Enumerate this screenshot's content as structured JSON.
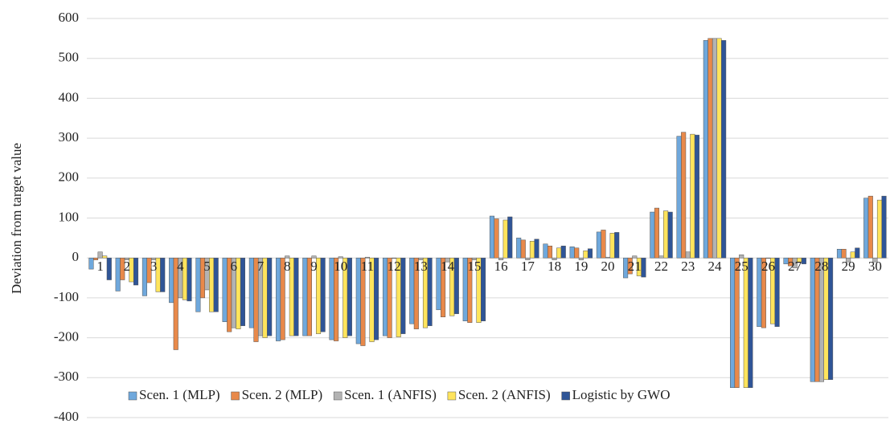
{
  "chart_data": {
    "type": "bar",
    "y_label": "Deviation from target value",
    "categories": [
      "1",
      "2",
      "3",
      "4",
      "5",
      "6",
      "7",
      "8",
      "9",
      "10",
      "11",
      "12",
      "13",
      "14",
      "15",
      "16",
      "17",
      "18",
      "19",
      "20",
      "21",
      "22",
      "23",
      "24",
      "25",
      "26",
      "27",
      "28",
      "29",
      "30"
    ],
    "series": [
      {
        "name": "Scen. 1 (MLP)",
        "color": "#6fa8dc",
        "values": [
          -28,
          -83,
          -95,
          -112,
          -135,
          -160,
          -175,
          -208,
          -195,
          -205,
          -215,
          -195,
          -165,
          -130,
          -158,
          105,
          50,
          35,
          28,
          65,
          -50,
          115,
          305,
          545,
          -325,
          -172,
          -15,
          -310,
          22,
          150
        ]
      },
      {
        "name": "Scen. 2 (MLP)",
        "color": "#e8894a",
        "values": [
          -5,
          -55,
          -62,
          -230,
          -100,
          -185,
          -210,
          -205,
          -195,
          -208,
          -220,
          -200,
          -178,
          -148,
          -162,
          98,
          45,
          30,
          25,
          70,
          -40,
          125,
          315,
          550,
          -325,
          -175,
          -20,
          -310,
          22,
          155
        ]
      },
      {
        "name": "Scen. 1 (ANFIS)",
        "color": "#b3b3b3",
        "values": [
          15,
          -5,
          -5,
          -100,
          -80,
          -175,
          -195,
          5,
          5,
          3,
          2,
          0,
          -5,
          -10,
          -5,
          -5,
          -5,
          -5,
          -5,
          2,
          5,
          5,
          15,
          550,
          8,
          0,
          -25,
          -310,
          -10,
          -10
        ]
      },
      {
        "name": "Scen. 2 (ANFIS)",
        "color": "#ffe45c",
        "values": [
          5,
          -60,
          -85,
          -105,
          -135,
          -178,
          -200,
          -195,
          -190,
          -200,
          -210,
          -198,
          -175,
          -145,
          -162,
          95,
          42,
          25,
          18,
          62,
          -45,
          118,
          310,
          550,
          -325,
          -165,
          -10,
          -305,
          15,
          145
        ]
      },
      {
        "name": "Logistic by GWO",
        "color": "#2f5597",
        "values": [
          -55,
          -68,
          -85,
          -108,
          -135,
          -170,
          -195,
          -195,
          -185,
          -195,
          -205,
          -190,
          -170,
          -140,
          -158,
          103,
          47,
          30,
          23,
          64,
          -48,
          115,
          308,
          545,
          -325,
          -172,
          -15,
          -305,
          25,
          155
        ]
      }
    ],
    "ylim": [
      -400,
      600
    ],
    "yticks": [
      -400,
      -300,
      -200,
      -100,
      0,
      100,
      200,
      300,
      400,
      500,
      600
    ],
    "grid": true,
    "legend": "bottom"
  }
}
